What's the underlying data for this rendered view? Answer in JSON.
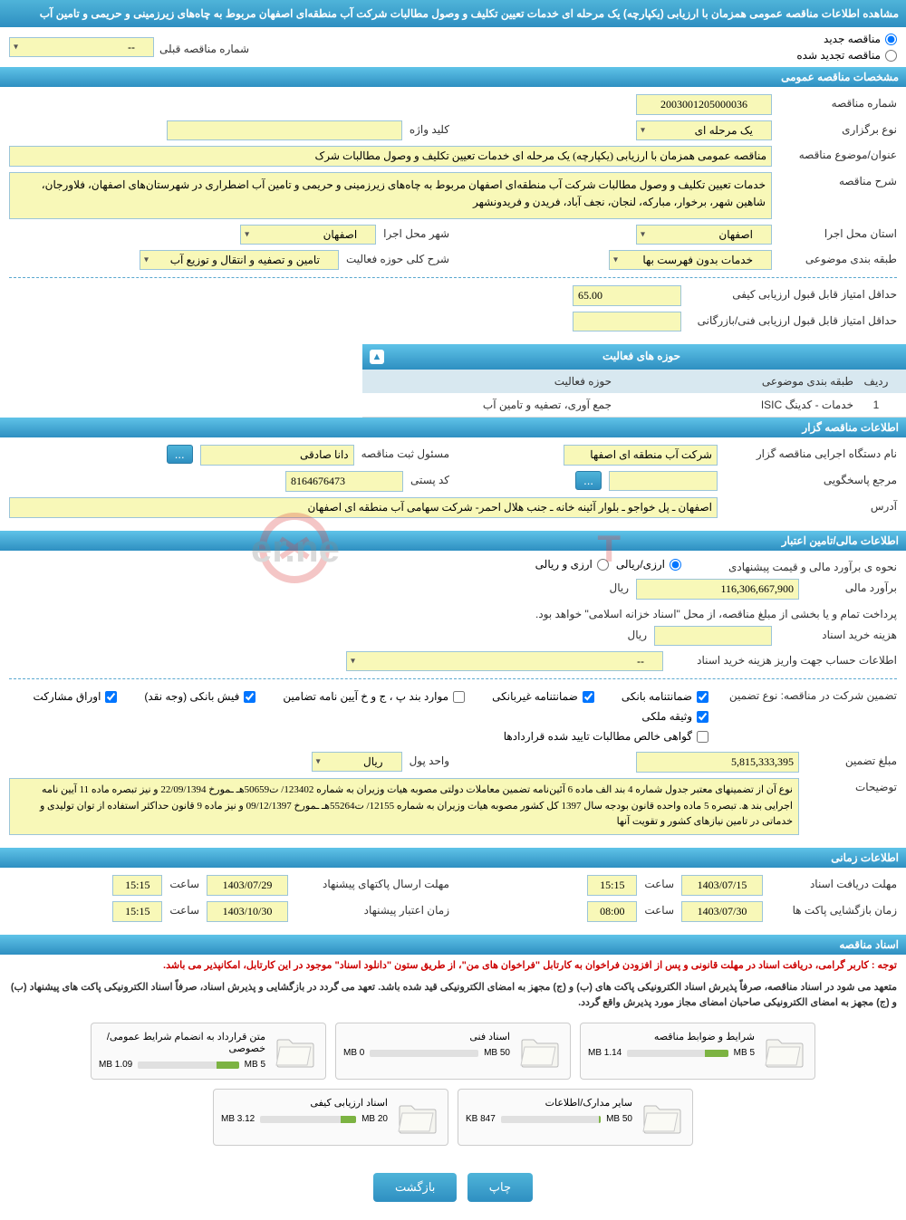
{
  "header_title": "مشاهده اطلاعات مناقصه عمومی همزمان با ارزیابی (یکپارچه) یک مرحله ای خدمات تعیین تکلیف و وصول مطالبات شرکت آب منطقه‌ای اصفهان مربوط به چاه‌های زیرزمینی و حریمی و تامین آب",
  "top": {
    "new_tender": "مناقصه جدید",
    "renewed_tender": "مناقصه تجدید شده",
    "prev_number_label": "شماره مناقصه قبلی",
    "prev_number_value": "--"
  },
  "sections": {
    "general": "مشخصات مناقصه عمومی",
    "activity_fields": "حوزه های فعالیت",
    "organizer": "اطلاعات مناقصه گزار",
    "financial": "اطلاعات مالی/تامین اعتبار",
    "timing": "اطلاعات زمانی",
    "docs": "اسناد مناقصه"
  },
  "general": {
    "tender_no_label": "شماره مناقصه",
    "tender_no": "2003001205000036",
    "keyword_label": "کلید واژه",
    "keyword": "",
    "hold_type_label": "نوع برگزاری",
    "hold_type": "یک مرحله ای",
    "subject_label": "عنوان/موضوع مناقصه",
    "subject": "مناقصه عمومی همزمان با ارزیابی (یکپارچه) یک مرحله ای خدمات تعیین تکلیف و وصول مطالبات شرک",
    "desc_label": "شرح مناقصه",
    "desc": "خدمات تعیین تکلیف و وصول مطالبات شرکت آب منطقه‌ای اصفهان مربوط به چاه‌های زیرزمینی و حریمی و تامین آب اضطراری در شهرستان‌های اصفهان، فلاورجان، شاهین شهر، برخوار، مبارکه، لنجان، نجف آباد، فریدن و فریدونشهر",
    "province_label": "استان محل اجرا",
    "province": "اصفهان",
    "city_label": "شهر محل اجرا",
    "city": "اصفهان",
    "category_label": "طبقه بندی موضوعی",
    "category": "خدمات بدون فهرست بها",
    "activity_scope_label": "شرح کلی حوزه فعالیت",
    "activity_scope": "تامین و تصفیه و انتقال و توزیع آب",
    "min_quality_score_label": "حداقل امتیاز قابل قبول ارزیابی کیفی",
    "min_quality_score": "65.00",
    "min_tech_score_label": "حداقل امتیاز قابل قبول ارزیابی فنی/بازرگانی",
    "min_tech_score": ""
  },
  "activity_table": {
    "col_num": "ردیف",
    "col_category": "طبقه بندی موضوعی",
    "col_field": "حوزه فعالیت",
    "row1_num": "1",
    "row1_category": "خدمات - کدینگ ISIC",
    "row1_field": "جمع آوری، تصفیه و تامین آب"
  },
  "organizer": {
    "exec_name_label": "نام دستگاه اجرایی مناقصه گزار",
    "exec_name": "شرکت آب منطقه ای اصفها",
    "reg_officer_label": "مسئول ثبت مناقصه",
    "reg_officer": "دانا صادقی",
    "response_ref_label": "مرجع پاسخگویی",
    "response_ref": "",
    "postal_code_label": "کد پستی",
    "postal_code": "8164676473",
    "address_label": "آدرس",
    "address": "اصفهان ـ پل خواجو ـ بلوار آئینه خانه ـ جنب هلال احمر- شرکت سهامی آب منطقه ای اصفهان"
  },
  "financial": {
    "estimate_method_label": "نحوه ی برآورد مالی و قیمت پیشنهادی",
    "currency_rial": "ارزی/ریالی",
    "currency_foreign": "ارزی و ریالی",
    "estimate_label": "برآورد مالی",
    "estimate": "116,306,667,900",
    "unit": "ریال",
    "payment_note": "پرداخت تمام و یا بخشی از مبلغ مناقصه، از محل \"اسناد خزانه اسلامی\" خواهد بود.",
    "doc_cost_label": "هزینه خرید اسناد",
    "doc_cost": "",
    "account_info_label": "اطلاعات حساب جهت واریز هزینه خرید اسناد",
    "account_info": "--",
    "guarantee_type_label": "تضمین شرکت در مناقصه:  نوع تضمین",
    "chk_bank_guarantee": "ضمانتنامه بانکی",
    "chk_nonbank_guarantee": "ضمانتنامه غیربانکی",
    "chk_bondj": "موارد بند پ ، ج و خ آیین نامه تضامین",
    "chk_cash": "فیش بانکی (وجه نقد)",
    "chk_securities": "اوراق مشارکت",
    "chk_property": "وثیقه ملکی",
    "chk_receivables": "گواهی خالص مطالبات تایید شده قراردادها",
    "guarantee_amount_label": "مبلغ تضمین",
    "guarantee_amount": "5,815,333,395",
    "currency_unit_label": "واحد پول",
    "currency_unit": "ریال",
    "explanations_label": "توضیحات",
    "explanations": "نوع آن از تضمینهای معتبر جدول شماره 4 بند الف ماده 6 آئین‌نامه تضمین معاملات دولتی مصوبه هیات وزیران به شماره 123402/ ت50659هـ ـمورخ 22/09/1394 و نیز تبصره ماده 11 آیین نامه اجرایی بند ھ. تبصره 5 ماده واحده قانون بودجه سال 1397 کل کشور مصوبه هیات وزیران به شماره 12155/ ت55264هـ ـمورخ 09/12/1397 و نیز ماده 9 قانون حداکثر استفاده از توان تولیدی و خدماتی در تامین نیازهای کشور و تقویت آنها"
  },
  "timing": {
    "doc_receive_deadline_label": "مهلت دریافت اسناد",
    "doc_receive_date": "1403/07/15",
    "doc_receive_time": "15:15",
    "time_label": "ساعت",
    "proposal_deadline_label": "مهلت ارسال پاکتهای پیشنهاد",
    "proposal_date": "1403/07/29",
    "proposal_time": "15:15",
    "opening_label": "زمان بازگشایی پاکت ها",
    "opening_date": "1403/07/30",
    "opening_time": "08:00",
    "validity_label": "زمان اعتبار پیشنهاد",
    "validity_date": "1403/10/30",
    "validity_time": "15:15"
  },
  "notes": {
    "note1_prefix": "توجه :",
    "note1": "کاربر گرامی، دریافت اسناد در مهلت قانونی و پس از افزودن فراخوان به کارتابل \"فراخوان های من\"، از طریق ستون \"دانلود اسناد\" موجود در این کارتابل، امکانپذیر می باشد.",
    "note2": "متعهد می شود در اسناد مناقصه، صرفاً پذیرش اسناد الکترونیکی پاکت های (ب) و (ج) مجهز به امضای الکترونیکی قید شده باشد. تعهد می گردد در بازگشایی و پذیرش اسناد، صرفاً اسناد الکترونیکی پاکت های پیشنهاد (ب) و (ج) مجهز به امضای الکترونیکی صاحبان امضای مجاز مورد پذیرش واقع گردد."
  },
  "folders": [
    {
      "title": "شرایط و ضوابط مناقصه",
      "used": "1.14 MB",
      "total": "5 MB",
      "pct": 23
    },
    {
      "title": "اسناد فنی",
      "used": "0 MB",
      "total": "50 MB",
      "pct": 0
    },
    {
      "title": "متن قرارداد به انضمام شرایط عمومی/خصوصی",
      "used": "1.09 MB",
      "total": "5 MB",
      "pct": 22
    },
    {
      "title": "سایر مدارک/اطلاعات",
      "used": "847 KB",
      "total": "50 MB",
      "pct": 2
    },
    {
      "title": "اسناد ارزیابی کیفی",
      "used": "3.12 MB",
      "total": "20 MB",
      "pct": 16
    }
  ],
  "buttons": {
    "print": "چاپ",
    "back": "بازگشت"
  },
  "colors": {
    "header_grad_top": "#4fb4d9",
    "header_grad_bot": "#2e8fc1",
    "yellow_bg": "#f8f8b8",
    "input_border": "#9cc5d9"
  }
}
